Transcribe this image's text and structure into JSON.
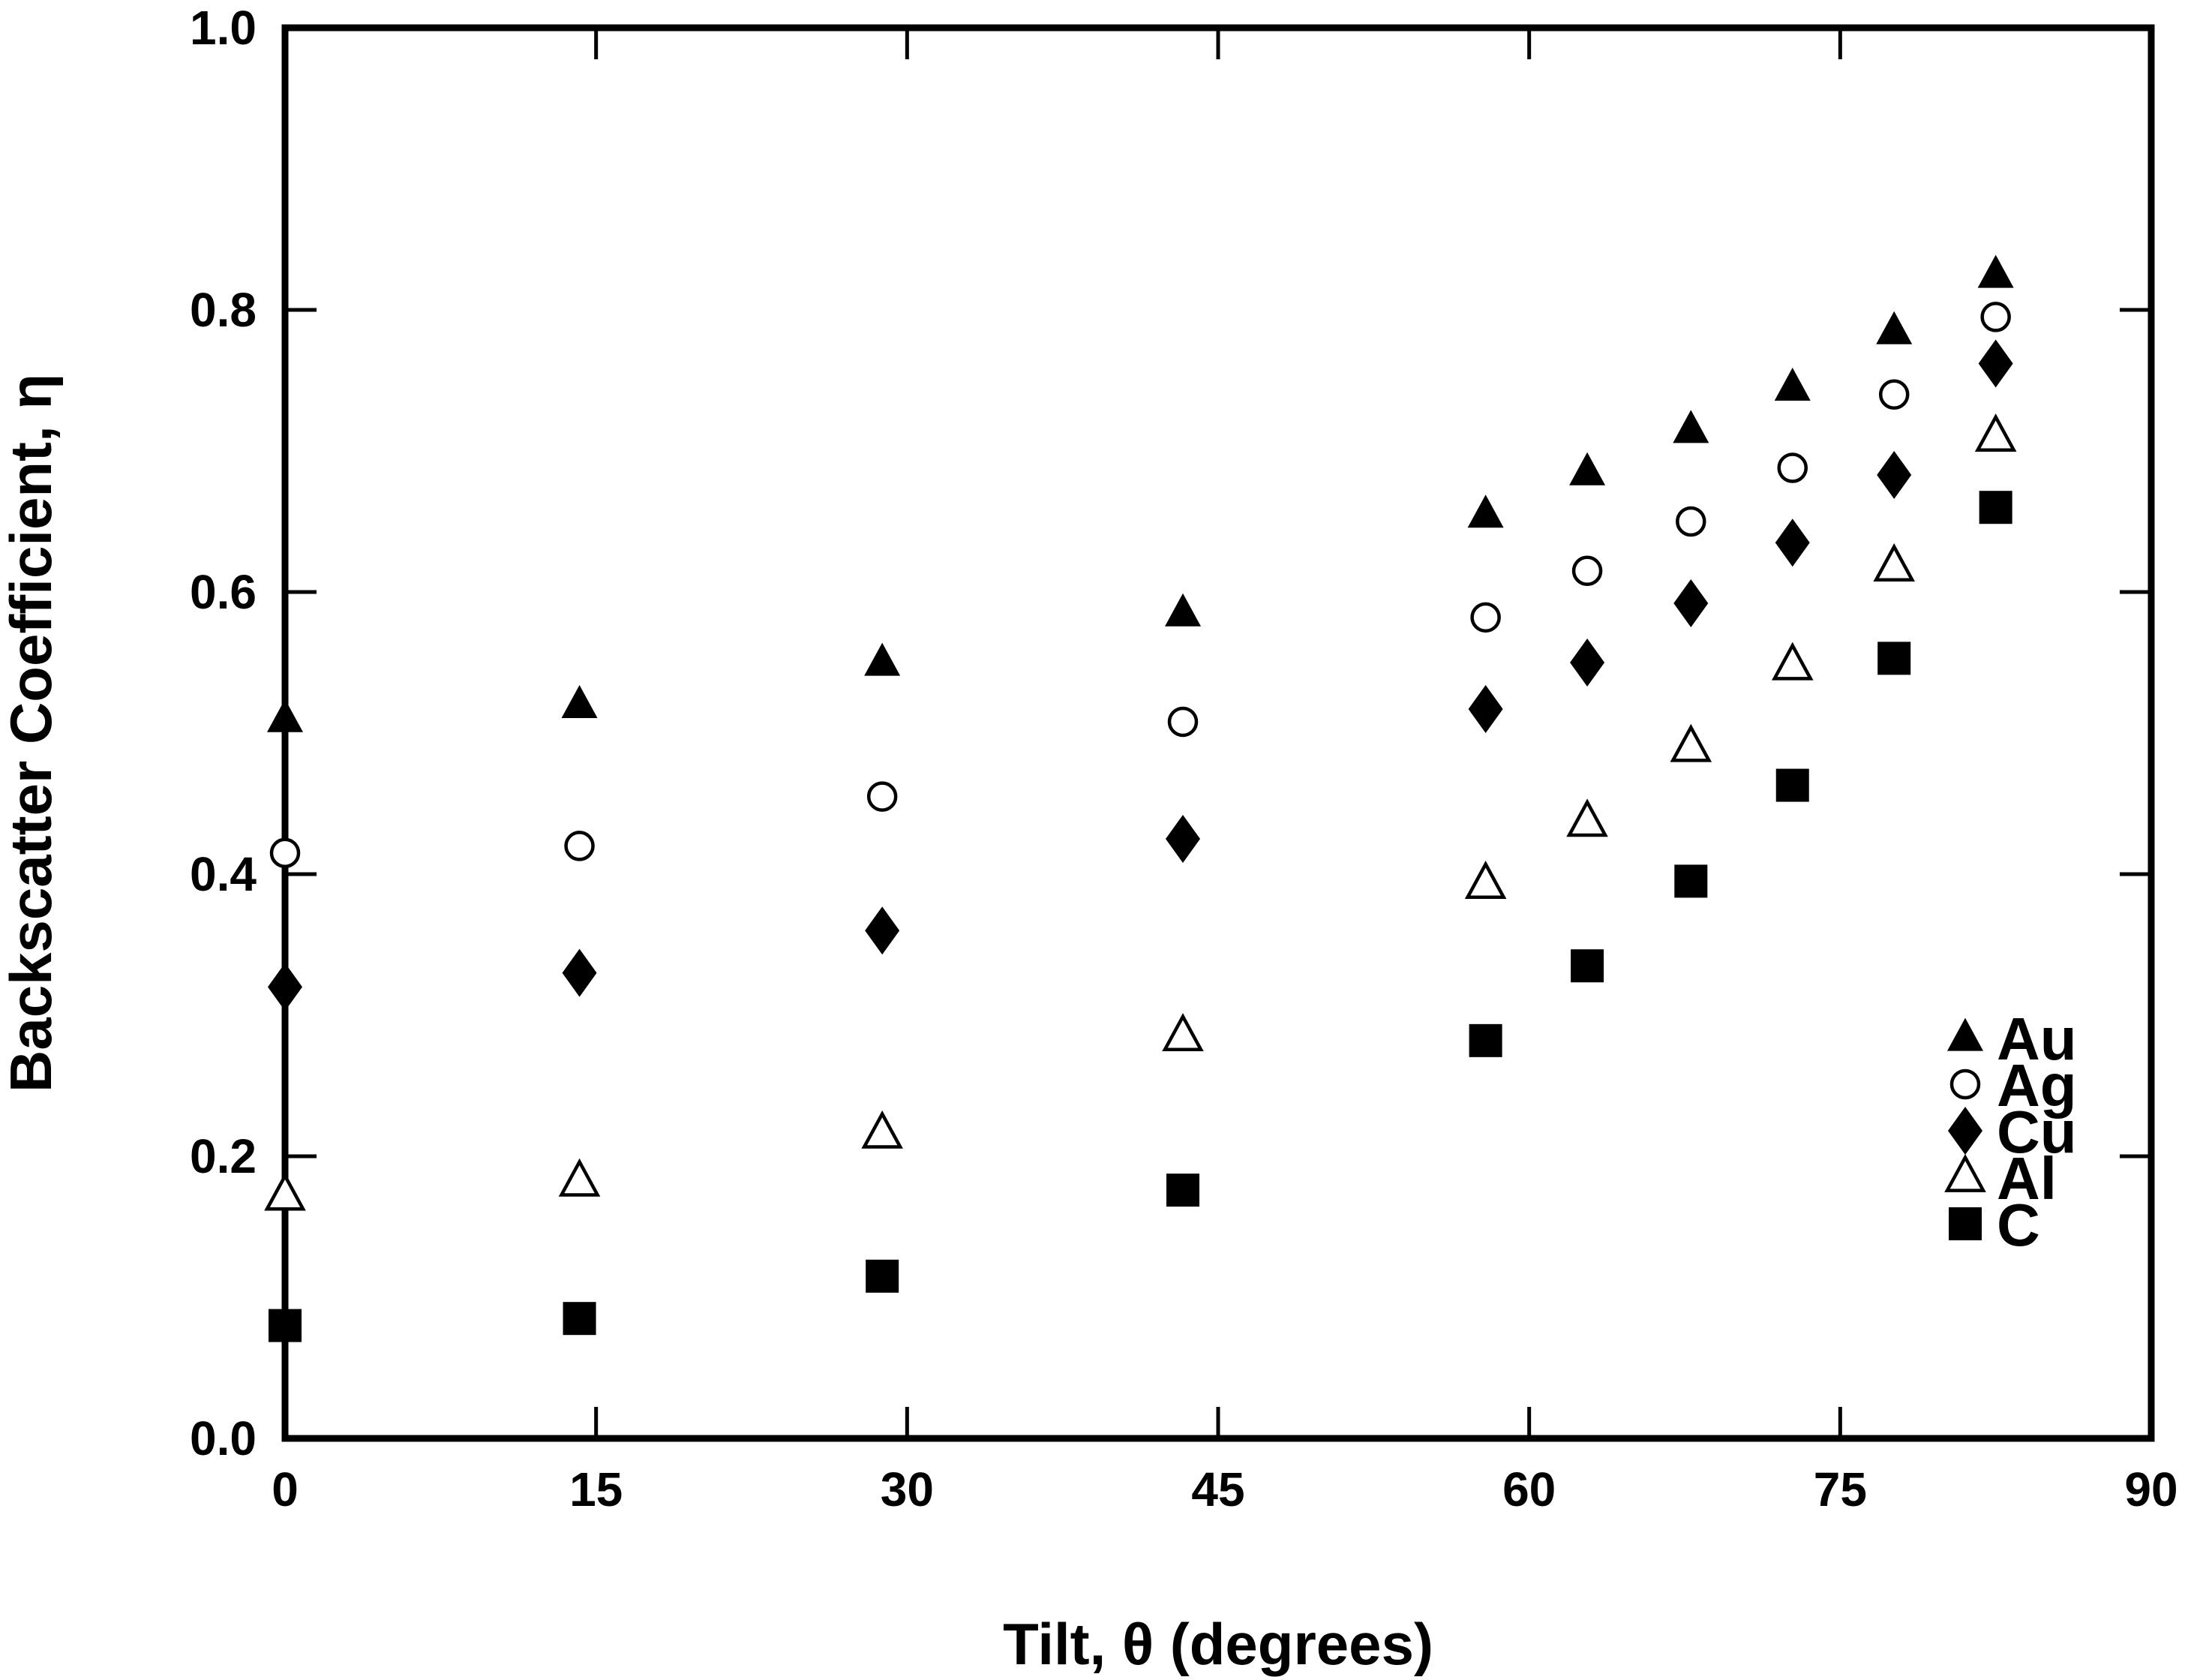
{
  "chart_data": {
    "type": "scatter",
    "xlabel": "Tilt, θ (degrees)",
    "ylabel": "Backscatter Coefficient, η",
    "xlim": [
      0,
      90
    ],
    "ylim": [
      0.0,
      1.0
    ],
    "xticks": [
      "0",
      "15",
      "30",
      "45",
      "60",
      "75",
      "90"
    ],
    "yticks": [
      "0.0",
      "0.2",
      "0.4",
      "0.6",
      "0.8",
      "1.0"
    ],
    "grid": false,
    "legend_position": "bottom-right",
    "series": [
      {
        "name": "Au",
        "marker": "filled-triangle",
        "x": [
          0,
          14.2,
          28.8,
          43.3,
          57.9,
          62.8,
          67.8,
          72.7,
          77.6,
          82.5
        ],
        "y": [
          0.51,
          0.52,
          0.55,
          0.585,
          0.655,
          0.685,
          0.715,
          0.745,
          0.785,
          0.825
        ]
      },
      {
        "name": "Ag",
        "marker": "open-circle",
        "x": [
          0,
          14.2,
          28.8,
          43.3,
          57.9,
          62.8,
          67.8,
          72.7,
          77.6,
          82.5
        ],
        "y": [
          0.415,
          0.42,
          0.455,
          0.508,
          0.582,
          0.615,
          0.65,
          0.688,
          0.74,
          0.795
        ]
      },
      {
        "name": "Cu",
        "marker": "filled-diamond",
        "x": [
          0,
          14.2,
          28.8,
          43.3,
          57.9,
          62.8,
          67.8,
          72.7,
          77.6,
          82.5
        ],
        "y": [
          0.32,
          0.33,
          0.36,
          0.425,
          0.517,
          0.55,
          0.592,
          0.635,
          0.683,
          0.762
        ]
      },
      {
        "name": "Al",
        "marker": "open-triangle",
        "x": [
          0,
          14.2,
          28.8,
          43.3,
          57.9,
          62.8,
          67.8,
          72.7,
          77.6,
          82.5
        ],
        "y": [
          0.172,
          0.182,
          0.216,
          0.285,
          0.393,
          0.437,
          0.49,
          0.548,
          0.618,
          0.71
        ]
      },
      {
        "name": "C",
        "marker": "filled-square",
        "x": [
          0,
          14.2,
          28.8,
          43.3,
          57.9,
          62.8,
          67.8,
          72.7,
          77.6,
          82.5
        ],
        "y": [
          0.08,
          0.085,
          0.115,
          0.176,
          0.282,
          0.335,
          0.395,
          0.463,
          0.553,
          0.66
        ]
      }
    ]
  }
}
